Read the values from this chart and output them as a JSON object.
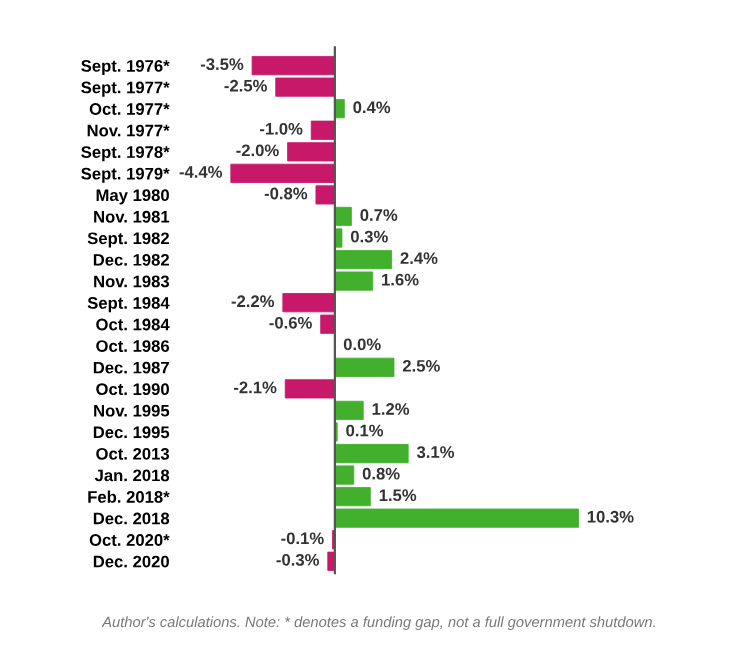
{
  "chart_data": {
    "type": "bar",
    "orientation": "horizontal",
    "categories": [
      "Sept. 1976*",
      "Sept. 1977*",
      "Oct. 1977*",
      "Nov. 1977*",
      "Sept. 1978*",
      "Sept. 1979*",
      "May 1980",
      "Nov. 1981",
      "Sept. 1982",
      "Dec. 1982",
      "Nov. 1983",
      "Sept. 1984",
      "Oct. 1984",
      "Oct. 1986",
      "Dec. 1987",
      "Oct. 1990",
      "Nov. 1995",
      "Dec. 1995",
      "Oct. 2013",
      "Jan. 2018",
      "Feb. 2018*",
      "Dec. 2018",
      "Oct. 2020*",
      "Dec. 2020"
    ],
    "values": [
      -3.5,
      -2.5,
      0.4,
      -1.0,
      -2.0,
      -4.4,
      -0.8,
      0.7,
      0.3,
      2.4,
      1.6,
      -2.2,
      -0.6,
      0.0,
      2.5,
      -2.1,
      1.2,
      0.1,
      3.1,
      0.8,
      1.5,
      10.3,
      -0.1,
      -0.3
    ],
    "value_labels": [
      "-3.5%",
      "-2.5%",
      "0.4%",
      "-1.0%",
      "-2.0%",
      "-4.4%",
      "-0.8%",
      "0.7%",
      "0.3%",
      "2.4%",
      "1.6%",
      "-2.2%",
      "-0.6%",
      "0.0%",
      "2.5%",
      "-2.1%",
      "1.2%",
      "0.1%",
      "3.1%",
      "0.8%",
      "1.5%",
      "10.3%",
      "-0.1%",
      "-0.3%"
    ],
    "colors": [
      "#c8186a",
      "#c8186a",
      "#42b02c",
      "#c8186a",
      "#c8186a",
      "#c8186a",
      "#c8186a",
      "#42b02c",
      "#42b02c",
      "#42b02c",
      "#42b02c",
      "#c8186a",
      "#c8186a",
      "#42b02c",
      "#42b02c",
      "#c8186a",
      "#42b02c",
      "#42b02c",
      "#42b02c",
      "#42b02c",
      "#42b02c",
      "#42b02c",
      "#c8186a",
      "#c8186a"
    ],
    "annotations": [
      "Author's calculations. Note: * denotes a funding gap, not a full government shutdown."
    ]
  }
}
